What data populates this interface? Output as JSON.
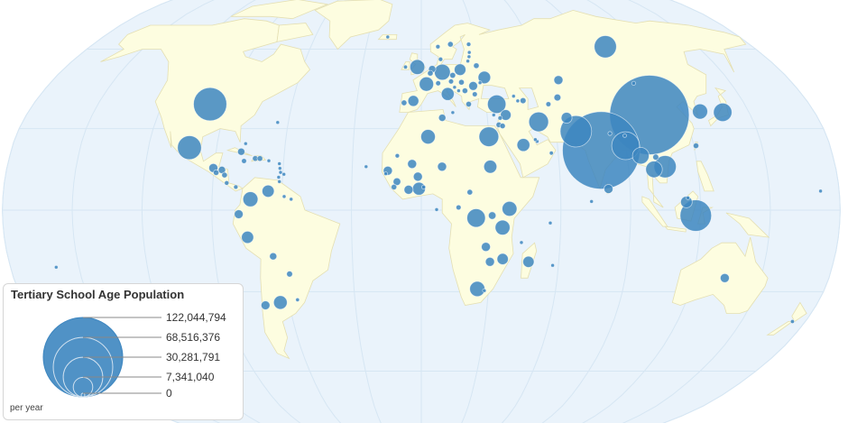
{
  "legend": {
    "title": "Tertiary School Age Population",
    "unit_note": "per year",
    "scale_labels": [
      "122,044,794",
      "68,516,376",
      "30,281,791",
      "7,341,040",
      "0"
    ],
    "scale_values": [
      122044794,
      68516376,
      30281791,
      7341040,
      0
    ]
  },
  "colors": {
    "ocean": "#eaf3fb",
    "land": "#fdfde0",
    "border": "#e4dfb2",
    "graticule": "#d6e6f3",
    "bubble": "#3d86c0"
  },
  "chart_data": {
    "type": "bubble-map",
    "projection": "robinson",
    "size_field": "Tertiary School Age Population",
    "max_value": 122044794,
    "bubbles": [
      {
        "lon": 104,
        "lat": 35,
        "value": 122044794
      },
      {
        "lon": 79,
        "lat": 22,
        "value": 116000000
      },
      {
        "lon": -98,
        "lat": 39,
        "value": 21400000
      },
      {
        "lon": 118,
        "lat": -2,
        "value": 19000000
      },
      {
        "lon": 69,
        "lat": 29,
        "value": 19000000
      },
      {
        "lon": 90,
        "lat": 23.7,
        "value": 15000000
      },
      {
        "lon": 100,
        "lat": 61,
        "value": 9500000
      },
      {
        "lon": -102,
        "lat": 23,
        "value": 11000000
      },
      {
        "lon": 106,
        "lat": 16,
        "value": 9500000
      },
      {
        "lon": 53,
        "lat": 32.5,
        "value": 7500000
      },
      {
        "lon": 30,
        "lat": 27,
        "value": 7500000
      },
      {
        "lon": 138,
        "lat": 36,
        "value": 6600000
      },
      {
        "lon": 23.6,
        "lat": -2.9,
        "value": 6600000
      },
      {
        "lon": 35,
        "lat": 39,
        "value": 6500000
      },
      {
        "lon": 96,
        "lat": 20,
        "value": 5300000
      },
      {
        "lon": 101,
        "lat": 15,
        "value": 5300000
      },
      {
        "lon": 10.5,
        "lat": 51,
        "value": 4900000
      },
      {
        "lon": 127.8,
        "lat": 36.3,
        "value": 4500000
      },
      {
        "lon": 25,
        "lat": -29,
        "value": 4400000
      },
      {
        "lon": -73.5,
        "lat": 4,
        "value": 4300000
      },
      {
        "lon": -2,
        "lat": 53,
        "value": 4200000
      },
      {
        "lon": 37.9,
        "lat": 0.5,
        "value": 4200000
      },
      {
        "lon": 35,
        "lat": -6.4,
        "value": 4200000
      },
      {
        "lon": 3,
        "lat": 27,
        "value": 4000000
      },
      {
        "lon": 2.5,
        "lat": 46.5,
        "value": 3900000
      },
      {
        "lon": 30,
        "lat": 16,
        "value": 3300000
      },
      {
        "lon": -64,
        "lat": -34,
        "value": 3500000
      },
      {
        "lon": 45,
        "lat": 24,
        "value": 3200000
      },
      {
        "lon": 12.5,
        "lat": 42.8,
        "value": 3200000
      },
      {
        "lon": -1,
        "lat": 7.9,
        "value": 3200000
      },
      {
        "lon": 31,
        "lat": 49,
        "value": 3000000
      },
      {
        "lon": -75,
        "lat": -10,
        "value": 2800000
      },
      {
        "lon": -66,
        "lat": 7,
        "value": 2800000
      },
      {
        "lon": 19.5,
        "lat": 52,
        "value": 2600000
      },
      {
        "lon": 114,
        "lat": 3,
        "value": 2600000
      },
      {
        "lon": -3.7,
        "lat": 40.2,
        "value": 2300000
      },
      {
        "lon": 66,
        "lat": 34,
        "value": 2300000
      },
      {
        "lon": 38.5,
        "lat": 35,
        "value": 2200000
      },
      {
        "lon": 35.5,
        "lat": -18,
        "value": 2400000
      },
      {
        "lon": 46.8,
        "lat": -19,
        "value": 2400000
      },
      {
        "lon": 67,
        "lat": 48,
        "value": 1600000
      },
      {
        "lon": -90.3,
        "lat": 15.5,
        "value": 1600000
      },
      {
        "lon": -78.5,
        "lat": -1.5,
        "value": 1500000
      },
      {
        "lon": -71,
        "lat": -35,
        "value": 1500000
      },
      {
        "lon": 25,
        "lat": 45.8,
        "value": 1500000
      },
      {
        "lon": -4,
        "lat": 17,
        "value": 1600000
      },
      {
        "lon": 9,
        "lat": 16,
        "value": 1600000
      },
      {
        "lon": -14.5,
        "lat": 14.5,
        "value": 1600000
      },
      {
        "lon": -1.5,
        "lat": 12.3,
        "value": 1600000
      },
      {
        "lon": -5.5,
        "lat": 7.5,
        "value": 1600000
      },
      {
        "lon": 80.7,
        "lat": 7.8,
        "value": 1600000
      },
      {
        "lon": 134,
        "lat": -25,
        "value": 1600000
      },
      {
        "lon": 28,
        "lat": -13.5,
        "value": 1600000
      },
      {
        "lon": 30,
        "lat": -19,
        "value": 1600000
      },
      {
        "lon": -64.5,
        "lat": -17,
        "value": 1000000
      },
      {
        "lon": -86.5,
        "lat": 14.8,
        "value": 1000000
      },
      {
        "lon": -79,
        "lat": 21.5,
        "value": 1000000
      },
      {
        "lon": 5.5,
        "lat": 52.2,
        "value": 1000000
      },
      {
        "lon": 9.5,
        "lat": 34,
        "value": 1000000
      },
      {
        "lon": -10.5,
        "lat": 10.5,
        "value": 1100000
      },
      {
        "lon": 30.5,
        "lat": -2,
        "value": 1100000
      },
      {
        "lon": -58,
        "lat": -23.5,
        "value": 700000
      },
      {
        "lon": 102.5,
        "lat": 19.5,
        "value": 700000
      },
      {
        "lon": 47.5,
        "lat": 40.3,
        "value": 700000
      },
      {
        "lon": 64,
        "lat": 41.5,
        "value": 900000
      },
      {
        "lon": 59,
        "lat": 39,
        "value": 500000
      },
      {
        "lon": 15.5,
        "lat": 49.8,
        "value": 650000
      },
      {
        "lon": 28,
        "lat": 53.5,
        "value": 600000
      },
      {
        "lon": 19.5,
        "lat": 47.2,
        "value": 600000
      },
      {
        "lon": 20.8,
        "lat": 44,
        "value": 600000
      },
      {
        "lon": 22,
        "lat": 39,
        "value": 600000
      },
      {
        "lon": -8,
        "lat": 39.5,
        "value": 600000
      },
      {
        "lon": -72.5,
        "lat": 19,
        "value": 600000
      },
      {
        "lon": -70.5,
        "lat": 19,
        "value": 600000
      },
      {
        "lon": -88.9,
        "lat": 13.8,
        "value": 600000
      },
      {
        "lon": -85.2,
        "lat": 12.9,
        "value": 600000
      },
      {
        "lon": 20.9,
        "lat": 6.6,
        "value": 600000
      },
      {
        "lon": 121,
        "lat": 23.7,
        "value": 600000
      },
      {
        "lon": 34.9,
        "lat": 31.4,
        "value": 600000
      },
      {
        "lon": 16,
        "lat": 1,
        "value": 500000
      },
      {
        "lon": -11.8,
        "lat": 8.5,
        "value": 600000
      },
      {
        "lon": 4.5,
        "lat": 50.6,
        "value": 600000
      },
      {
        "lon": 16,
        "lat": 62,
        "value": 600000
      },
      {
        "lon": -77.3,
        "lat": 18.1,
        "value": 500000
      },
      {
        "lon": 36.5,
        "lat": 31,
        "value": 550000
      },
      {
        "lon": 14.5,
        "lat": 47.5,
        "value": 500000
      },
      {
        "lon": 8.2,
        "lat": 46.8,
        "value": 500000
      },
      {
        "lon": 25.3,
        "lat": 42.7,
        "value": 500000
      },
      {
        "lon": -84,
        "lat": 10,
        "value": 400000
      },
      {
        "lon": -80,
        "lat": 8.5,
        "value": 350000
      },
      {
        "lon": 9,
        "lat": 61,
        "value": 350000
      },
      {
        "lon": 26,
        "lat": 62,
        "value": 350000
      },
      {
        "lon": 10,
        "lat": 56,
        "value": 350000
      },
      {
        "lon": -8,
        "lat": 53,
        "value": 300000
      },
      {
        "lon": 35.8,
        "lat": 33.9,
        "value": 350000
      },
      {
        "lon": -10.5,
        "lat": 20,
        "value": 350000
      },
      {
        "lon": 57,
        "lat": 21,
        "value": 300000
      },
      {
        "lon": 103,
        "lat": 46.8,
        "value": 300000
      },
      {
        "lon": 84,
        "lat": 28.2,
        "value": 300000
      },
      {
        "lon": 174,
        "lat": -41,
        "value": 300000
      },
      {
        "lon": 1,
        "lat": 8.5,
        "value": 300000
      },
      {
        "lon": 16,
        "lat": 45.3,
        "value": 250000
      },
      {
        "lon": 17.8,
        "lat": 44,
        "value": 250000
      },
      {
        "lon": 43.5,
        "lat": 42,
        "value": 250000
      },
      {
        "lon": 45,
        "lat": 40.2,
        "value": 250000
      },
      {
        "lon": 28.5,
        "lat": 47,
        "value": 250000
      },
      {
        "lon": -56,
        "lat": -33,
        "value": 270000
      },
      {
        "lon": -66.5,
        "lat": 18.2,
        "value": 260000
      },
      {
        "lon": -15.4,
        "lat": 13.4,
        "value": 200000
      },
      {
        "lon": 24,
        "lat": 55.3,
        "value": 200000
      },
      {
        "lon": 25,
        "lat": 57,
        "value": 150000
      },
      {
        "lon": 25.5,
        "lat": 58.7,
        "value": 100000
      },
      {
        "lon": -77.5,
        "lat": 24.5,
        "value": 200000
      },
      {
        "lon": 6.6,
        "lat": 0.2,
        "value": 150000
      },
      {
        "lon": 28.2,
        "lat": -29.6,
        "value": 200000
      },
      {
        "lon": 51.2,
        "lat": 25.3,
        "value": 100000
      },
      {
        "lon": 50.5,
        "lat": 26,
        "value": 80000
      },
      {
        "lon": -61.3,
        "lat": 10.5,
        "value": 100000
      },
      {
        "lon": -59,
        "lat": 5,
        "value": 80000
      },
      {
        "lon": -56,
        "lat": 4,
        "value": 50000
      },
      {
        "lon": -64.8,
        "lat": 32.3,
        "value": 80000
      },
      {
        "lon": -61.8,
        "lat": 17.1,
        "value": 50000
      },
      {
        "lon": -61.4,
        "lat": 15.4,
        "value": 50000
      },
      {
        "lon": -61,
        "lat": 13.9,
        "value": 50000
      },
      {
        "lon": -59.5,
        "lat": 13.2,
        "value": 50000
      },
      {
        "lon": -61.7,
        "lat": 12.1,
        "value": 50000
      },
      {
        "lon": -24,
        "lat": 16,
        "value": 50000
      },
      {
        "lon": 14.4,
        "lat": 35.9,
        "value": 50000
      },
      {
        "lon": 33,
        "lat": 35,
        "value": 60000
      },
      {
        "lon": 90.4,
        "lat": 27.4,
        "value": 70000
      },
      {
        "lon": 114.7,
        "lat": 4.5,
        "value": 30000
      },
      {
        "lon": 73.2,
        "lat": 3.2,
        "value": 40000
      },
      {
        "lon": 55.5,
        "lat": -4.7,
        "value": 30000
      },
      {
        "lon": 43.3,
        "lat": -11.9,
        "value": 50000
      },
      {
        "lon": 57.5,
        "lat": -20.3,
        "value": 60000
      },
      {
        "lon": -19,
        "lat": 65,
        "value": 30000
      },
      {
        "lon": 172,
        "lat": 7,
        "value": 20000
      },
      {
        "lon": -160,
        "lat": -21,
        "value": 20000
      }
    ]
  }
}
